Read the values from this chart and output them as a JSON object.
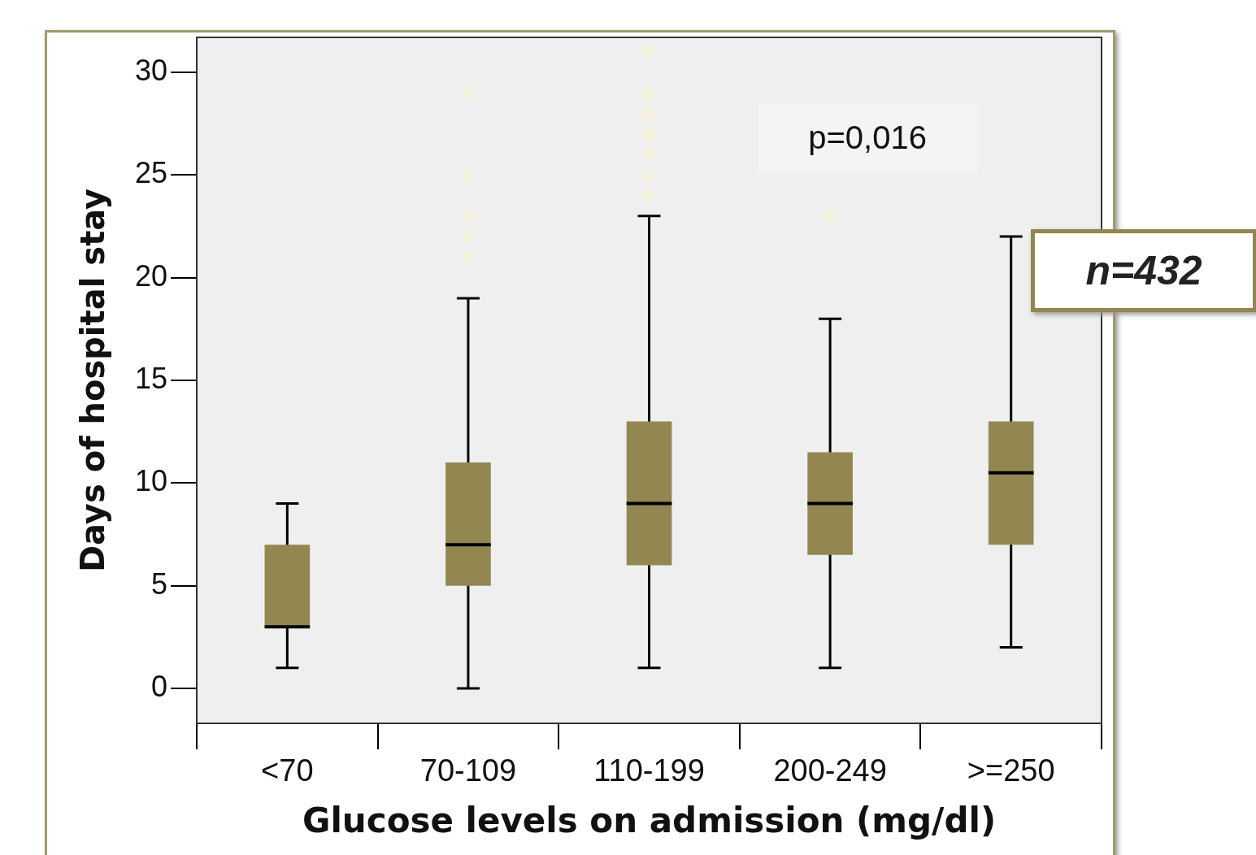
{
  "chart_data": {
    "type": "box",
    "xlabel": "Glucose levels on admission (mg/dl)",
    "ylabel": "Days of hospital stay",
    "categories": [
      "<70",
      "70-109",
      "110-199",
      "200-249",
      ">=250"
    ],
    "color": "#938751",
    "boxes": [
      {
        "low": 1,
        "q1": 3,
        "median": 3,
        "q3": 7,
        "high": 9
      },
      {
        "low": 0,
        "q1": 5,
        "median": 7,
        "q3": 11,
        "high": 19,
        "outliers": [
          29,
          25,
          23,
          22,
          21
        ]
      },
      {
        "low": 1,
        "q1": 6,
        "median": 9,
        "q3": 13,
        "high": 23,
        "outliers": [
          31,
          29,
          28,
          27,
          26,
          25,
          24
        ]
      },
      {
        "low": 1,
        "q1": 6.5,
        "median": 9,
        "q3": 11.5,
        "high": 18,
        "outliers": [
          23
        ]
      },
      {
        "low": 2,
        "q1": 7,
        "median": 10.5,
        "q3": 13,
        "high": 22
      }
    ],
    "ylim": [
      -1.7,
      31.7
    ],
    "yticks": [
      0,
      5,
      10,
      15,
      20,
      25,
      30
    ],
    "annotations": [
      "p=0,016",
      "n=432"
    ]
  }
}
